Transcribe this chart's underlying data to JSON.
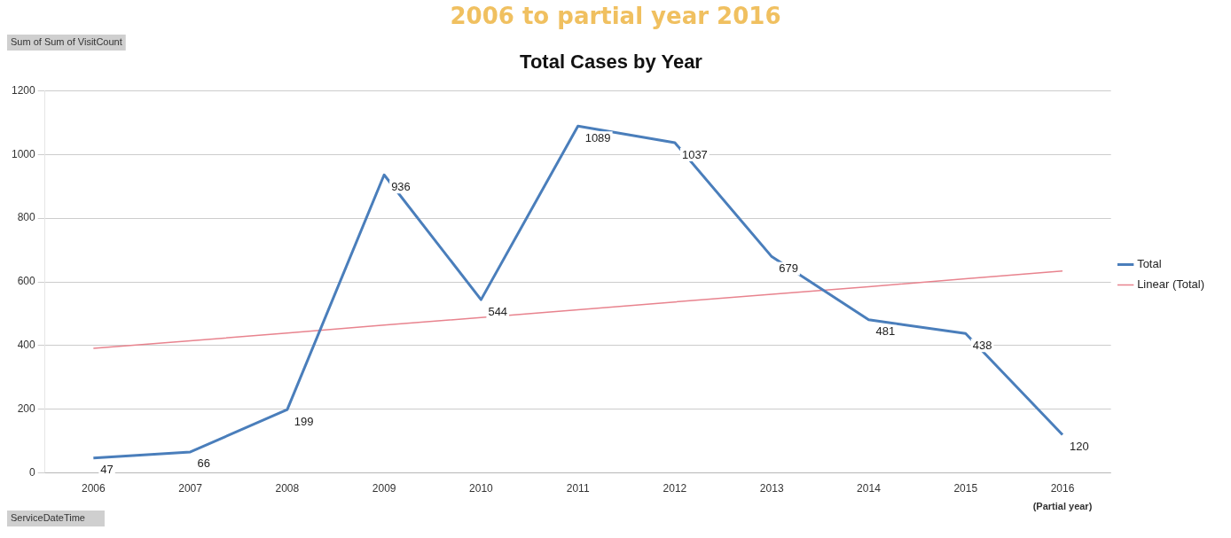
{
  "chart_data": {
    "type": "line",
    "title": "Total Cases by Year",
    "subtitle": "2006 to partial year 2016",
    "categories": [
      "2006",
      "2007",
      "2008",
      "2009",
      "2010",
      "2011",
      "2012",
      "2013",
      "2014",
      "2015",
      "2016"
    ],
    "series": [
      {
        "name": "Total",
        "color": "#4a7ebb",
        "values": [
          47,
          66,
          199,
          936,
          544,
          1089,
          1037,
          679,
          481,
          438,
          120
        ],
        "value_labels": [
          "47",
          "66",
          "199",
          "936",
          "544",
          "1089",
          "1037",
          "679",
          "481",
          "438",
          "120"
        ]
      },
      {
        "name": "Linear (Total)",
        "color": "#e8838e",
        "values": [
          391,
          415,
          439,
          464,
          488,
          512,
          537,
          561,
          585,
          610,
          634
        ]
      }
    ],
    "ylim": [
      0,
      1200
    ],
    "yticks": [
      0,
      200,
      400,
      600,
      800,
      1000,
      1200
    ],
    "grid": "y",
    "legend": "right",
    "marker": "none",
    "line_style": "solid",
    "annotations": [
      "Sum of Sum of VisitCount",
      "ServiceDateTime",
      "(Partial year)"
    ]
  }
}
